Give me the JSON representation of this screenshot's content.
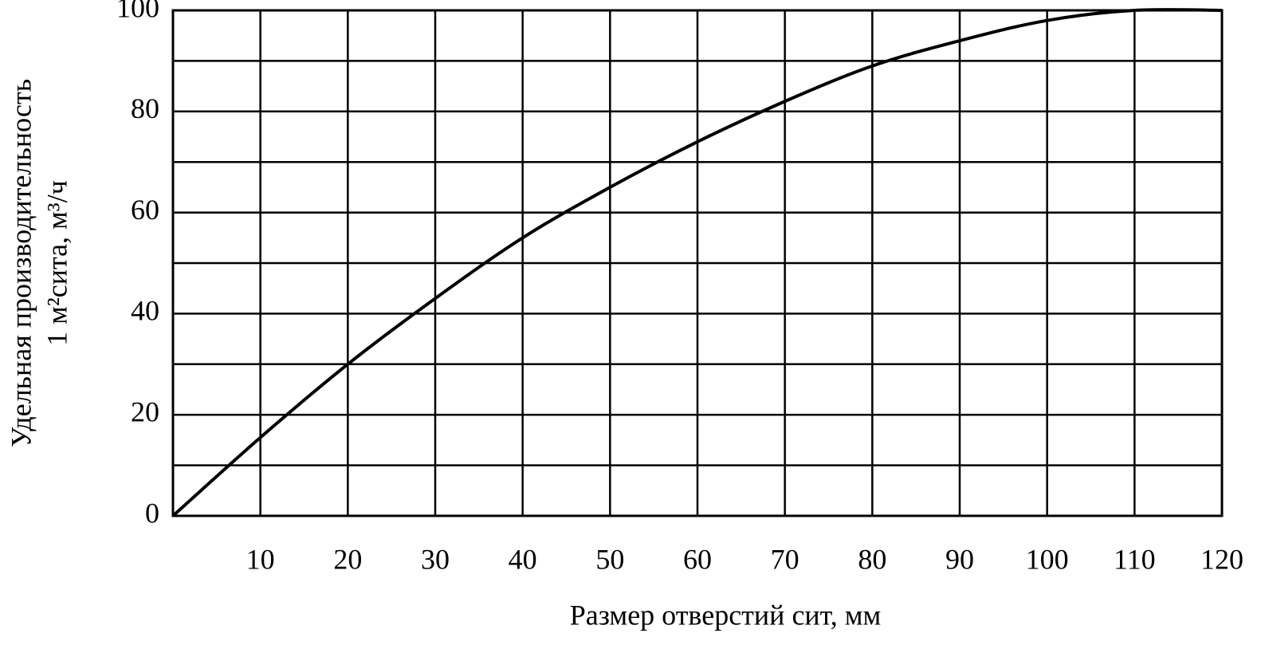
{
  "chart_data": {
    "type": "line",
    "x_label": "Размер отверстий сит, мм",
    "y_label": [
      "Удельная производительность",
      "1 м²сита, м³/ч"
    ],
    "x": [
      0,
      10,
      20,
      30,
      40,
      50,
      60,
      70,
      80,
      90,
      100,
      110,
      120
    ],
    "values": [
      0,
      15.5,
      30,
      43,
      55,
      65,
      74,
      82,
      89,
      94,
      98,
      100,
      100
    ],
    "color": "#000000",
    "xlim": [
      0,
      120
    ],
    "xticks": [
      10,
      20,
      30,
      40,
      50,
      60,
      70,
      80,
      90,
      100,
      110,
      120
    ],
    "ylim": [
      0,
      100
    ],
    "yticks": [
      0,
      20,
      40,
      60,
      80,
      100
    ],
    "y_minor_ticks": [
      10,
      30,
      50,
      70,
      90
    ],
    "grid": true
  }
}
